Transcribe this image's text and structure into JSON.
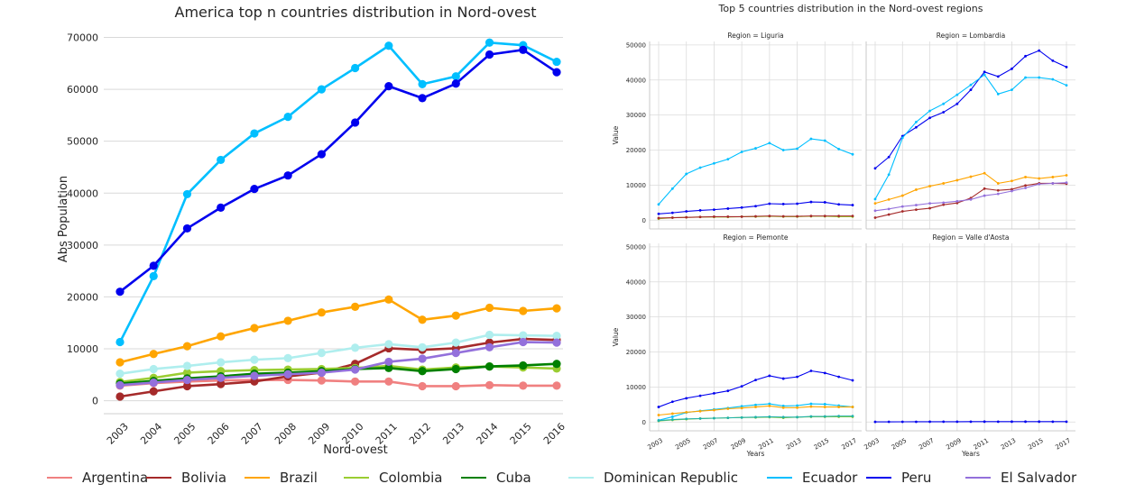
{
  "chart_data": [
    {
      "id": "main",
      "type": "line",
      "title": "America top n countries distribution in Nord-ovest",
      "xlabel": "Nord-ovest",
      "ylabel": "Abs Population",
      "x": [
        2003,
        2004,
        2005,
        2006,
        2007,
        2008,
        2009,
        2010,
        2011,
        2012,
        2013,
        2014,
        2015,
        2016
      ],
      "x_ticks": [
        "2003",
        "2004",
        "2005",
        "2006",
        "2007",
        "2008",
        "2009",
        "2010",
        "2011",
        "2012",
        "2013",
        "2014",
        "2015",
        "2016"
      ],
      "ylim": [
        -2500,
        72000
      ],
      "y_ticks": [
        0,
        10000,
        20000,
        30000,
        40000,
        50000,
        60000,
        70000
      ],
      "y_tick_labels": [
        "0",
        "10000",
        "20000",
        "30000",
        "40000",
        "50000",
        "60000",
        "70000"
      ],
      "grid": "horizontal",
      "legend_position": "bottom",
      "series": [
        {
          "name": "Argentina",
          "color": "#f08080",
          "values": [
            2900,
            3400,
            3700,
            3900,
            4000,
            4000,
            3900,
            3700,
            3700,
            2800,
            2800,
            3000,
            2900,
            2900
          ]
        },
        {
          "name": "Bolivia",
          "color": "#a52a2a",
          "values": [
            800,
            1800,
            2800,
            3200,
            3700,
            4700,
            5400,
            7100,
            10100,
            9800,
            10100,
            11200,
            11900,
            11700
          ]
        },
        {
          "name": "Brazil",
          "color": "#ffa500",
          "values": [
            7400,
            9000,
            10500,
            12400,
            14000,
            15400,
            17000,
            18100,
            19500,
            15600,
            16400,
            17900,
            17300,
            17800
          ]
        },
        {
          "name": "Colombia",
          "color": "#9acd32",
          "values": [
            3600,
            4400,
            5400,
            5700,
            5900,
            6000,
            6100,
            6300,
            6700,
            6000,
            6400,
            6600,
            6400,
            6200
          ]
        },
        {
          "name": "Cuba",
          "color": "#008000",
          "values": [
            3300,
            3800,
            4300,
            4700,
            5200,
            5400,
            5700,
            6100,
            6300,
            5700,
            6100,
            6600,
            6800,
            7100
          ]
        },
        {
          "name": "Dominican Republic",
          "color": "#afeeee",
          "values": [
            5200,
            6100,
            6700,
            7400,
            7900,
            8200,
            9200,
            10200,
            10900,
            10300,
            11200,
            12700,
            12600,
            12500
          ]
        },
        {
          "name": "Ecuador",
          "color": "#00bfff",
          "values": [
            11300,
            24000,
            39800,
            46400,
            51500,
            54700,
            60000,
            64100,
            68400,
            61000,
            62500,
            69000,
            68500,
            65300
          ]
        },
        {
          "name": "Peru",
          "color": "#0000ee",
          "values": [
            21000,
            26000,
            33200,
            37200,
            40800,
            43400,
            47500,
            53600,
            60600,
            58300,
            61100,
            66700,
            67600,
            63300
          ]
        },
        {
          "name": "El Salvador",
          "color": "#9370db",
          "values": [
            3000,
            3500,
            4000,
            4400,
            4800,
            5100,
            5400,
            6000,
            7500,
            8100,
            9200,
            10300,
            11300,
            11200
          ]
        }
      ]
    },
    {
      "id": "facets",
      "type": "line",
      "title": "Top 5 countries distribution in the Nord-ovest regions",
      "x": [
        2003,
        2004,
        2005,
        2006,
        2007,
        2008,
        2009,
        2010,
        2011,
        2012,
        2013,
        2014,
        2015,
        2016,
        2017
      ],
      "x_ticks": [
        2003,
        2005,
        2007,
        2009,
        2011,
        2013,
        2015,
        2017
      ],
      "x_tick_labels": [
        "2003",
        "2005",
        "2007",
        "2009",
        "2011",
        "2013",
        "2015",
        "2017"
      ],
      "xlabel": "Years",
      "ylabel": "Value",
      "ylim": [
        -2500,
        51000
      ],
      "y_ticks": [
        0,
        10000,
        20000,
        30000,
        40000,
        50000
      ],
      "y_tick_labels": [
        "0",
        "10000",
        "20000",
        "30000",
        "40000",
        "50000"
      ],
      "grid": "both",
      "panels": [
        {
          "title": "Region = Liguria",
          "series": [
            {
              "name": "Ecuador",
              "color": "#00bfff",
              "values": [
                4500,
                9000,
                13200,
                15000,
                16200,
                17400,
                19500,
                20500,
                22000,
                20000,
                20400,
                23200,
                22700,
                20300,
                18800
              ]
            },
            {
              "name": "Peru",
              "color": "#0000ee",
              "values": [
                1800,
                2100,
                2500,
                2800,
                3000,
                3300,
                3600,
                4000,
                4700,
                4600,
                4700,
                5200,
                5100,
                4500,
                4300
              ]
            },
            {
              "name": "Colombia",
              "color": "#9acd32",
              "values": [
                400,
                700,
                800,
                900,
                900,
                900,
                1000,
                1000,
                1100,
                1000,
                1000,
                1100,
                1100,
                1000,
                1000
              ]
            },
            {
              "name": "Bolivia",
              "color": "#a52a2a",
              "values": [
                600,
                700,
                800,
                900,
                1000,
                1000,
                1000,
                1100,
                1200,
                1100,
                1100,
                1200,
                1200,
                1200,
                1200
              ]
            }
          ]
        },
        {
          "title": "Region = Lombardia",
          "series": [
            {
              "name": "Peru",
              "color": "#0000ee",
              "values": [
                14800,
                18000,
                24000,
                26500,
                29200,
                30800,
                33200,
                37200,
                42300,
                41000,
                43200,
                46800,
                48400,
                45500,
                43700
              ]
            },
            {
              "name": "Ecuador",
              "color": "#00bfff",
              "values": [
                6000,
                13000,
                23500,
                28000,
                31200,
                33200,
                35800,
                38600,
                41500,
                36000,
                37200,
                40700,
                40700,
                40200,
                38500
              ]
            },
            {
              "name": "Brazil",
              "color": "#ffa500",
              "values": [
                4800,
                5900,
                7000,
                8700,
                9700,
                10500,
                11400,
                12400,
                13400,
                10500,
                11200,
                12300,
                11900,
                12300,
                12800
              ]
            },
            {
              "name": "Bolivia",
              "color": "#a52a2a",
              "values": [
                700,
                1600,
                2500,
                3000,
                3400,
                4400,
                4900,
                6300,
                9000,
                8500,
                8800,
                9900,
                10500,
                10500,
                10400
              ]
            },
            {
              "name": "El Salvador",
              "color": "#9370db",
              "values": [
                2700,
                3200,
                3900,
                4300,
                4800,
                5000,
                5400,
                5900,
                7000,
                7500,
                8300,
                9200,
                10300,
                10500,
                10700
              ]
            }
          ]
        },
        {
          "title": "Region = Piemonte",
          "series": [
            {
              "name": "Peru",
              "color": "#0000ee",
              "values": [
                4300,
                5800,
                6800,
                7500,
                8200,
                8900,
                10200,
                12000,
                13200,
                12400,
                12900,
                14600,
                14000,
                12900,
                11900
              ]
            },
            {
              "name": "Ecuador",
              "color": "#00bfff",
              "values": [
                500,
                1500,
                2700,
                3200,
                3600,
                4000,
                4500,
                4900,
                5200,
                4600,
                4700,
                5200,
                5100,
                4700,
                4300
              ]
            },
            {
              "name": "Brazil",
              "color": "#ffa500",
              "values": [
                2000,
                2400,
                2800,
                3100,
                3400,
                3800,
                4000,
                4300,
                4600,
                4100,
                4100,
                4400,
                4300,
                4300,
                4300
              ]
            },
            {
              "name": "Colombia",
              "color": "#9acd32",
              "values": [
                300,
                600,
                800,
                1000,
                1100,
                1200,
                1300,
                1300,
                1400,
                1200,
                1400,
                1500,
                1500,
                1500,
                1500
              ]
            },
            {
              "name": "Dominican Republic",
              "color": "#20b2aa",
              "values": [
                400,
                700,
                900,
                1000,
                1100,
                1200,
                1300,
                1400,
                1500,
                1400,
                1400,
                1600,
                1600,
                1700,
                1700
              ]
            }
          ]
        },
        {
          "title": "Region = Valle d'Aosta",
          "series": [
            {
              "name": "Peru",
              "color": "#0000ee",
              "values": [
                50,
                60,
                70,
                80,
                90,
                100,
                100,
                110,
                120,
                110,
                120,
                120,
                120,
                110,
                110
              ]
            }
          ]
        }
      ]
    }
  ],
  "legend": [
    {
      "label": "Argentina",
      "color": "#f08080"
    },
    {
      "label": "Bolivia",
      "color": "#a52a2a"
    },
    {
      "label": "Brazil",
      "color": "#ffa500"
    },
    {
      "label": "Colombia",
      "color": "#9acd32"
    },
    {
      "label": "Cuba",
      "color": "#008000"
    },
    {
      "label": "Dominican Republic",
      "color": "#afeeee"
    },
    {
      "label": "Ecuador",
      "color": "#00bfff"
    },
    {
      "label": "Peru",
      "color": "#0000ee"
    },
    {
      "label": "El Salvador",
      "color": "#9370db"
    }
  ]
}
